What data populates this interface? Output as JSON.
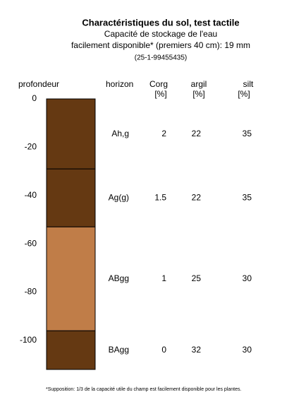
{
  "chart_data": {
    "type": "soil-profile",
    "title": "Charactéristiques du sol, test tactile",
    "subtitle": [
      "Capacité de stockage de l'eau",
      "facilement disponible* (premiers 40 cm): 19 mm"
    ],
    "id": "(25-1-99455435)",
    "columns": [
      {
        "name": "profondeur"
      },
      {
        "name": "horizon"
      },
      {
        "name": "Corg",
        "unit": "[%]"
      },
      {
        "name": "argil",
        "unit": "[%]"
      },
      {
        "name": "silt",
        "unit": "[%]"
      }
    ],
    "horizons": [
      {
        "name": "Ah,g",
        "top": 0,
        "bottom": -29,
        "color": "#653912",
        "corg": "2",
        "argil": "22",
        "silt": "35"
      },
      {
        "name": "Ag(g)",
        "top": -29,
        "bottom": -53,
        "color": "#653912",
        "corg": "1.5",
        "argil": "22",
        "silt": "35"
      },
      {
        "name": "ABgg",
        "top": -53,
        "bottom": -96,
        "color": "#c07d48",
        "corg": "1",
        "argil": "25",
        "silt": "30"
      },
      {
        "name": "BAgg",
        "top": -96,
        "bottom": -112,
        "color": "#653912",
        "corg": "0",
        "argil": "32",
        "silt": "30"
      }
    ],
    "ylim": [
      -112,
      0
    ],
    "yticks": [
      0,
      -20,
      -40,
      -60,
      -80,
      -100
    ],
    "footnote": "*Supposition: 1/3 de la capacité utile du champ est facilement disponible pour les plantes."
  }
}
